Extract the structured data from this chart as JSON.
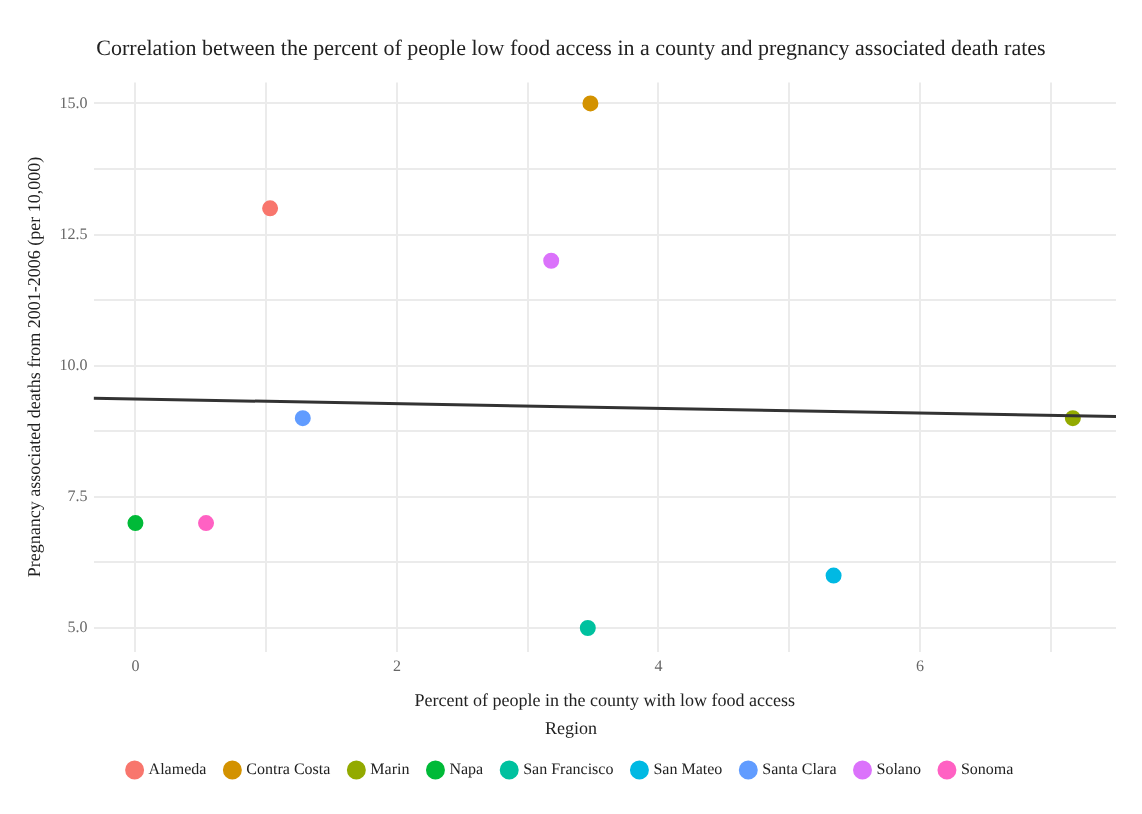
{
  "chart_data": {
    "type": "scatter",
    "title": "Correlation between the percent of people low food access in a county and pregnancy associated death rates",
    "xlabel": "Percent of people in the county with low food access",
    "ylabel": "Pregnancy associated deaths from 2001-2006 (per 10,000)",
    "legend_title": "Region",
    "legend": "bottom",
    "grid": true,
    "marker": "circle",
    "xlim": [
      -0.32,
      7.5
    ],
    "xticks": [
      0,
      {
        "value": 1,
        "label": null
      },
      2,
      {
        "value": 3,
        "label": null
      },
      4,
      {
        "value": 5,
        "label": null
      },
      6,
      {
        "value": 7,
        "label": null
      }
    ],
    "ylim": [
      4.55,
      15.4
    ],
    "yticks": [
      "5.0",
      {
        "value": 6.25,
        "label": null
      },
      {
        "value": 7.5,
        "label": "7.5"
      },
      {
        "value": 8.75,
        "label": null
      },
      {
        "value": 10,
        "label": "10.0"
      },
      {
        "value": 11.25,
        "label": null
      },
      {
        "value": 12.5,
        "label": "12.5"
      },
      {
        "value": 13.75,
        "label": null
      },
      {
        "value": 15,
        "label": "15.0"
      }
    ],
    "series": [
      {
        "name": "Alameda",
        "color": "#f8766d",
        "x": [
          1.03
        ],
        "values": [
          13
        ]
      },
      {
        "name": "Contra Costa",
        "color": "#d39200",
        "x": [
          3.48
        ],
        "values": [
          15
        ]
      },
      {
        "name": "Marin",
        "color": "#93aa00",
        "x": [
          7.17
        ],
        "values": [
          9
        ]
      },
      {
        "name": "Napa",
        "color": "#00ba38",
        "x": [
          0
        ],
        "values": [
          7
        ]
      },
      {
        "name": "San Francisco",
        "color": "#00c19f",
        "x": [
          3.46
        ],
        "values": [
          5
        ]
      },
      {
        "name": "San Mateo",
        "color": "#00b9e3",
        "x": [
          5.34
        ],
        "values": [
          6
        ]
      },
      {
        "name": "Santa Clara",
        "color": "#619cff",
        "x": [
          1.28
        ],
        "values": [
          9
        ]
      },
      {
        "name": "Solano",
        "color": "#db72fb",
        "x": [
          3.18
        ],
        "values": [
          12
        ]
      },
      {
        "name": "Sonoma",
        "color": "#ff61c3",
        "x": [
          0.54
        ],
        "values": [
          7
        ]
      },
      {
        "type": "line",
        "marker": "none",
        "color": "#333333",
        "x": [
          -0.32,
          7.5
        ],
        "values": [
          9.38,
          9.03
        ]
      }
    ]
  }
}
